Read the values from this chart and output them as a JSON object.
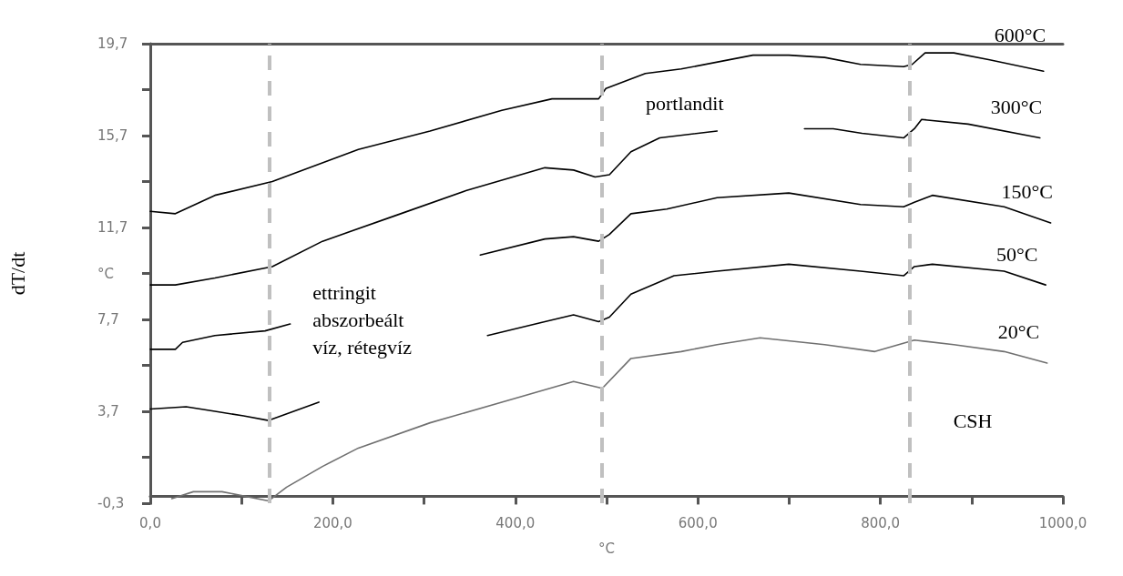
{
  "chart_data": {
    "type": "line",
    "xlabel": "°C",
    "ylabel": "dT/dt",
    "xlim": [
      0,
      1000
    ],
    "xticks": [
      {
        "value": 0,
        "label": "0,0"
      },
      {
        "value": 100,
        "label": null
      },
      {
        "value": 200,
        "label": "200,0"
      },
      {
        "value": 300,
        "label": null
      },
      {
        "value": 400,
        "label": "400,0"
      },
      {
        "value": 500,
        "label": null
      },
      {
        "value": 600,
        "label": "600,0"
      },
      {
        "value": 700,
        "label": null
      },
      {
        "value": 800,
        "label": "800,0"
      },
      {
        "value": 900,
        "label": null
      },
      {
        "value": 1000,
        "label": "1000,0"
      }
    ],
    "ylim": [
      -0.3,
      19.7
    ],
    "yticks": [
      {
        "value": -0.3,
        "label": "-0,3"
      },
      {
        "value": 1.7,
        "label": null
      },
      {
        "value": 3.7,
        "label": "3,7"
      },
      {
        "value": 5.7,
        "label": null
      },
      {
        "value": 7.7,
        "label": "7,7"
      },
      {
        "value": 9.7,
        "label": "°C"
      },
      {
        "value": 11.7,
        "label": "11,7"
      },
      {
        "value": 13.7,
        "label": null
      },
      {
        "value": 15.7,
        "label": "15,7"
      },
      {
        "value": 17.7,
        "label": null
      },
      {
        "value": 19.7,
        "label": "19,7"
      }
    ],
    "grid": false,
    "legend": false,
    "marker": "none",
    "line_style": "solid",
    "series": [
      {
        "name": "600°C",
        "color": "#000000",
        "x": [
          0,
          27.5,
          70.8,
          133.7,
          228,
          306.6,
          385.2,
          440.2,
          491.3,
          499.2,
          542.5,
          581.8,
          660.4,
          699.7,
          739,
          778.3,
          825.5,
          834.9,
          849,
          880.5,
          919.8,
          978.8
        ],
        "values": [
          12.4,
          12.3,
          13.1,
          13.7,
          15.1,
          15.9,
          16.8,
          17.3,
          17.3,
          17.75,
          18.4,
          18.6,
          19.2,
          19.2,
          19.1,
          18.8,
          18.7,
          18.8,
          19.3,
          19.3,
          19.0,
          18.5
        ]
      },
      {
        "name": "300°C",
        "color": "#000000",
        "x": [
          0,
          27.5,
          70.8,
          133.7,
          188.7,
          267.3,
          345.9,
          432.4,
          463.8,
          487.4,
          503.1,
          526.7,
          558.2,
          621.1,
          650,
          700,
          716.8,
          748.4,
          779.9,
          825.5,
          837.3,
          845.2,
          896.2,
          974.8
        ],
        "values": [
          9.2,
          9.2,
          9.5,
          10.0,
          11.1,
          12.2,
          13.3,
          14.3,
          14.2,
          13.9,
          14.0,
          15.0,
          15.6,
          15.9,
          null,
          null,
          16.0,
          16.0,
          15.8,
          15.6,
          16.0,
          16.4,
          16.2,
          15.6
        ]
      },
      {
        "name": "150°C",
        "color": "#000000",
        "x": [
          0,
          27.5,
          35.4,
          70.8,
          125.8,
          153.3,
          250,
          361.6,
          432.4,
          463.8,
          491.3,
          503.1,
          526.7,
          566,
          621.1,
          699.7,
          778.3,
          825.5,
          837.3,
          857,
          935.6,
          986.6
        ],
        "values": [
          6.4,
          6.4,
          6.7,
          7.0,
          7.2,
          7.5,
          null,
          10.5,
          11.2,
          11.3,
          11.1,
          11.4,
          12.3,
          12.5,
          13.0,
          13.2,
          12.7,
          12.6,
          12.8,
          13.1,
          12.6,
          11.9
        ]
      },
      {
        "name": "50°C",
        "color": "#000000",
        "x": [
          0,
          39.3,
          70.8,
          102.2,
          129.7,
          157.2,
          184.7,
          280,
          369.5,
          432.4,
          463.8,
          491.3,
          503.1,
          526.7,
          573.9,
          621.1,
          699.7,
          778.3,
          825.5,
          837.3,
          857,
          935.6,
          981.1
        ],
        "values": [
          3.8,
          3.9,
          3.7,
          3.5,
          3.3,
          3.7,
          4.1,
          null,
          7.0,
          7.6,
          7.9,
          7.6,
          7.8,
          8.8,
          9.6,
          9.8,
          10.1,
          9.8,
          9.6,
          10.0,
          10.1,
          9.8,
          9.2
        ]
      },
      {
        "name": "20°C",
        "color": "#707070",
        "x": [
          23.6,
          47.2,
          78.6,
          129.7,
          149.4,
          188.7,
          228,
          306.6,
          385.2,
          463.8,
          495.3,
          526.7,
          581.8,
          621.1,
          668.2,
          739,
          794,
          837.3,
          880.5,
          935.6,
          982.7
        ],
        "values": [
          -0.1,
          0.2,
          0.2,
          -0.2,
          0.4,
          1.3,
          2.1,
          3.2,
          4.1,
          5.0,
          4.7,
          6.0,
          6.3,
          6.6,
          6.9,
          6.6,
          6.3,
          6.8,
          6.6,
          6.3,
          5.8
        ]
      }
    ],
    "ref_lines": [
      {
        "axis": "x",
        "value": 130,
        "label": "ettringit\nabszorbeált\nvíz, rétegvíz",
        "color": "#c0c0c0",
        "line_style": "dashed"
      },
      {
        "axis": "x",
        "value": 495,
        "label": "portlandit",
        "color": "#c0c0c0",
        "line_style": "dashed"
      },
      {
        "axis": "x",
        "value": 832,
        "label": "CSH",
        "color": "#c0c0c0",
        "line_style": "dashed"
      }
    ]
  }
}
